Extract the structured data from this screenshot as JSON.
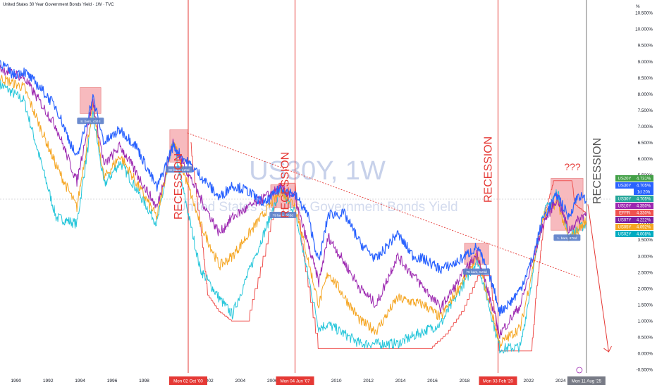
{
  "header": {
    "title": "United States 30 Year Government Bonds Yield · 1W · TVC"
  },
  "watermark": {
    "symbol": "US30Y, 1W",
    "name": "United States 30 Year Government Bonds Yield"
  },
  "colors": {
    "recession_line": "#e53935",
    "box_fill": "#f4a3a8",
    "trend": "#e53935",
    "us30y": "#2962ff",
    "us10y": "#9c27b0",
    "us05y": "#f5a623",
    "us02y": "#26c6da",
    "effr": "#ef5350"
  },
  "chart_data": {
    "type": "line",
    "title": "United States 30 Year Government Bonds Yield · 1W · TVC",
    "xlabel": "",
    "ylabel": "%",
    "x_ticks": [
      "1990",
      "1992",
      "1994",
      "1996",
      "1998",
      "2002",
      "2004",
      "2006",
      "2010",
      "2012",
      "2014",
      "2016",
      "2018",
      "2022",
      "2024"
    ],
    "y_ticks": [
      "10.500%",
      "10.000%",
      "9.500%",
      "9.000%",
      "8.500%",
      "8.000%",
      "7.500%",
      "7.000%",
      "6.500%",
      "6.000%",
      "5.500%",
      "5.000%",
      "4.500%",
      "4.000%",
      "3.500%",
      "3.000%",
      "2.500%",
      "2.000%",
      "1.500%",
      "1.000%",
      "0.500%",
      "0.000%",
      "-0.500%"
    ],
    "y_unit_label": "%",
    "ylim": [
      -0.6,
      10.9
    ],
    "xlim": [
      1989.0,
      2027.2
    ],
    "series": [
      {
        "name": "US30Y",
        "color": "#2962ff",
        "x": [
          1989.0,
          1989.8,
          1990.5,
          1991.5,
          1992.5,
          1993.8,
          1994.8,
          1995.5,
          1996.5,
          1997.5,
          1998.8,
          1999.8,
          2000.5,
          2001.5,
          2002.7,
          2003.5,
          2004.5,
          2005.5,
          2006.5,
          2007.4,
          2008.2,
          2008.9,
          2009.5,
          2010.5,
          2011.5,
          2012.5,
          2013.8,
          2014.8,
          2015.5,
          2016.5,
          2017.5,
          2018.8,
          2019.7,
          2020.2,
          2020.9,
          2021.5,
          2022.3,
          2022.9,
          2023.8,
          2024.5,
          2025.1,
          2025.6
        ],
        "y": [
          9.0,
          8.6,
          8.7,
          8.2,
          7.6,
          6.0,
          7.9,
          6.5,
          6.9,
          6.4,
          5.1,
          6.4,
          6.0,
          5.5,
          4.8,
          5.2,
          5.0,
          4.6,
          5.1,
          4.9,
          4.3,
          2.8,
          4.3,
          4.3,
          3.4,
          2.9,
          3.7,
          3.0,
          2.9,
          2.6,
          2.8,
          3.3,
          2.2,
          1.3,
          1.6,
          2.0,
          3.0,
          4.2,
          4.9,
          4.2,
          4.9,
          4.7
        ]
      },
      {
        "name": "US10Y",
        "color": "#9c27b0",
        "x": [
          1989.0,
          1990.5,
          1992.5,
          1993.8,
          1994.8,
          1995.5,
          1996.5,
          1998.8,
          1999.8,
          2001.5,
          2002.7,
          2003.5,
          2006.5,
          2007.4,
          2008.9,
          2009.5,
          2011.5,
          2012.5,
          2013.8,
          2015.5,
          2016.5,
          2018.8,
          2020.2,
          2021.5,
          2022.9,
          2023.8,
          2024.5,
          2025.6
        ],
        "y": [
          8.8,
          8.5,
          7.0,
          5.3,
          7.8,
          5.8,
          6.4,
          4.5,
          6.5,
          4.8,
          3.7,
          4.2,
          5.1,
          4.8,
          2.2,
          3.6,
          2.0,
          1.5,
          3.0,
          2.0,
          1.4,
          3.1,
          0.6,
          1.5,
          4.0,
          4.8,
          3.8,
          4.35
        ]
      },
      {
        "name": "US05Y",
        "color": "#f5a623",
        "x": [
          1989.0,
          1990.5,
          1992.5,
          1993.8,
          1994.8,
          1995.5,
          1996.5,
          1998.8,
          1999.8,
          2001.5,
          2002.7,
          2003.5,
          2006.5,
          2007.4,
          2008.9,
          2009.5,
          2011.5,
          2012.5,
          2013.8,
          2015.5,
          2016.5,
          2018.8,
          2020.2,
          2021.5,
          2022.9,
          2023.8,
          2024.5,
          2025.6
        ],
        "y": [
          8.5,
          8.2,
          5.8,
          4.5,
          7.6,
          5.4,
          6.1,
          4.2,
          6.6,
          4.0,
          2.7,
          3.0,
          5.0,
          4.6,
          1.5,
          2.5,
          1.0,
          0.7,
          1.7,
          1.5,
          1.1,
          3.0,
          0.3,
          0.8,
          4.2,
          4.7,
          3.5,
          4.09
        ]
      },
      {
        "name": "US02Y",
        "color": "#26c6da",
        "x": [
          1989.0,
          1990.5,
          1992.5,
          1993.8,
          1994.8,
          1995.5,
          1996.5,
          1998.8,
          1999.8,
          2001.5,
          2002.7,
          2003.5,
          2006.5,
          2007.4,
          2008.9,
          2009.5,
          2011.5,
          2013.8,
          2015.5,
          2016.5,
          2018.8,
          2020.2,
          2021.5,
          2022.9,
          2023.8,
          2024.5,
          2025.6
        ],
        "y": [
          8.3,
          7.8,
          4.2,
          4.0,
          7.4,
          5.2,
          5.9,
          4.0,
          6.5,
          2.6,
          1.7,
          1.2,
          5.0,
          4.4,
          0.8,
          0.9,
          0.3,
          0.3,
          0.7,
          0.9,
          2.9,
          0.15,
          0.2,
          4.3,
          5.0,
          3.6,
          4.01
        ]
      },
      {
        "name": "EFFR",
        "color": "#ef5350",
        "x": [
          2000.9,
          2001.5,
          2002.0,
          2002.7,
          2003.5,
          2004.5,
          2005.5,
          2006.5,
          2007.4,
          2008.0,
          2008.9,
          2015.9,
          2016.9,
          2017.9,
          2018.9,
          2019.6,
          2020.2,
          2022.2,
          2022.6,
          2023.1,
          2023.6,
          2024.7,
          2024.9,
          2025.6
        ],
        "y": [
          6.5,
          4.0,
          1.8,
          1.3,
          1.0,
          1.0,
          3.0,
          5.25,
          5.25,
          3.0,
          0.15,
          0.15,
          0.6,
          1.3,
          2.4,
          2.4,
          0.08,
          0.08,
          2.5,
          4.5,
          5.33,
          5.33,
          4.6,
          4.33
        ]
      }
    ],
    "legend": [
      {
        "label": "US20Y",
        "value": "4.731%",
        "color": "#43a047"
      },
      {
        "label": "US30Y",
        "value": "4.705%",
        "color": "#2962ff",
        "sub": "1d 20h"
      },
      {
        "label": "US30Y",
        "value": "4.705%",
        "color": "#26a69a"
      },
      {
        "label": "US10Y",
        "value": "4.350%",
        "color": "#9c27b0"
      },
      {
        "label": "EFFR",
        "value": "4.330%",
        "color": "#ef5350"
      },
      {
        "label": "US07Y",
        "value": "4.222%",
        "color": "#7b1fa2"
      },
      {
        "label": "US05Y",
        "value": "4.092%",
        "color": "#f5a623"
      },
      {
        "label": "US02Y",
        "value": "4.008%",
        "color": "#00acc1"
      }
    ],
    "recessions": [
      {
        "x": 2000.75,
        "label": "RECESSION",
        "date": "Mon 02 Oct '00"
      },
      {
        "x": 2007.42,
        "label": "RECESSION",
        "date": "Mon 04 Jun '07"
      },
      {
        "x": 2020.09,
        "label": "RECESSION",
        "date": "Mon 03 Feb '20"
      }
    ],
    "current_time": {
      "x": 2025.61,
      "label": "RECESSION",
      "date": "Mon 11 Aug '25"
    },
    "boxes": [
      {
        "x0": 1994.0,
        "x1": 1995.3,
        "y0": 7.4,
        "y1": 8.2,
        "measure": "8. bars, 434d"
      },
      {
        "x0": 1999.6,
        "x1": 2000.75,
        "y0": 5.9,
        "y1": 6.9,
        "measure": "60 bars, 420d"
      },
      {
        "x0": 2005.9,
        "x1": 2007.42,
        "y0": 4.5,
        "y1": 5.2,
        "measure": "79 bars, 553d"
      },
      {
        "x0": 2018.0,
        "x1": 2019.5,
        "y0": 2.75,
        "y1": 3.4,
        "measure": "75 bars, 525d"
      },
      {
        "x0": 2023.4,
        "x1": 2025.4,
        "y0": 3.8,
        "y1": 5.4,
        "measure": "1. bars, 876d"
      }
    ],
    "trendline": {
      "x": [
        2000.7,
        2025.2
      ],
      "y": [
        6.8,
        2.35
      ]
    },
    "arrow": {
      "x": [
        2025.7,
        2027.0
      ],
      "y": [
        4.6,
        0.05
      ]
    },
    "question_label": "???"
  }
}
